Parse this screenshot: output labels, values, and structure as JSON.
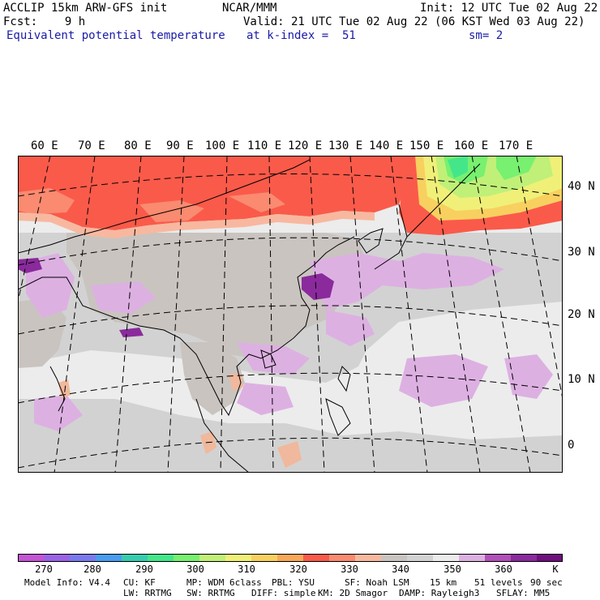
{
  "header": {
    "line1_left": "ACCLIP 15km ARW-GFS init",
    "line1_center": "NCAR/MMM",
    "line1_right": "Init: 12 UTC Tue 02 Aug 22",
    "line2_left": "Fcst:    9 h",
    "line2_right": "Valid: 21 UTC Tue 02 Aug 22 (06 KST Wed 03 Aug 22)",
    "line3_left": "Equivalent potential temperature",
    "line3_center": "at k-index =  51",
    "line3_right": "sm= 2"
  },
  "map": {
    "lon_labels": [
      "60 E",
      "70 E",
      "80 E",
      "90 E",
      "100 E",
      "110 E",
      "120 E",
      "130 E",
      "140 E",
      "150 E",
      "160 E",
      "170 E"
    ],
    "lat_labels": [
      "40 N",
      "30 N",
      "20 N",
      "10 N",
      "0"
    ],
    "field": "equivalent potential temperature",
    "units": "K",
    "colors": {
      "warm_band": "#fa5a4a",
      "warm_band_light": "#f8907a",
      "cold_green": "#78f070",
      "cold_yellow": "#f0f078",
      "gray_350": "#c9c4c0",
      "gray_355": "#d2d2d2",
      "gray_360": "#ececec",
      "lavender": "#ddb0e2",
      "purple": "#8a2a9c",
      "tan": "#f0b89c"
    }
  },
  "colorbar": {
    "colors": [
      "#c454d4",
      "#9a62e6",
      "#7a7af0",
      "#4a9cf0",
      "#36ccb0",
      "#44e68a",
      "#78f070",
      "#c0f078",
      "#f0f078",
      "#f8d060",
      "#f8a858",
      "#fa5a4a",
      "#fa8a70",
      "#f8b8a0",
      "#c9c4c0",
      "#d2d2d2",
      "#ececec",
      "#ddb0e2",
      "#b050b8",
      "#8a2a9c",
      "#70107e"
    ],
    "labels": [
      "270",
      "280",
      "290",
      "300",
      "310",
      "320",
      "330",
      "340",
      "350",
      "360"
    ],
    "unit": "K"
  },
  "footer": {
    "line1": [
      "Model Info: V4.4",
      "CU: KF",
      "MP: WDM 6class",
      "PBL: YSU",
      "SF: Noah LSM",
      "15 km",
      "51 levels",
      "90 sec"
    ],
    "line2": [
      "LW: RRTMG",
      "SW: RRTMG",
      "DIFF: simple",
      "KM: 2D Smagor",
      "DAMP: Rayleigh3",
      "SFLAY: MM5"
    ]
  }
}
